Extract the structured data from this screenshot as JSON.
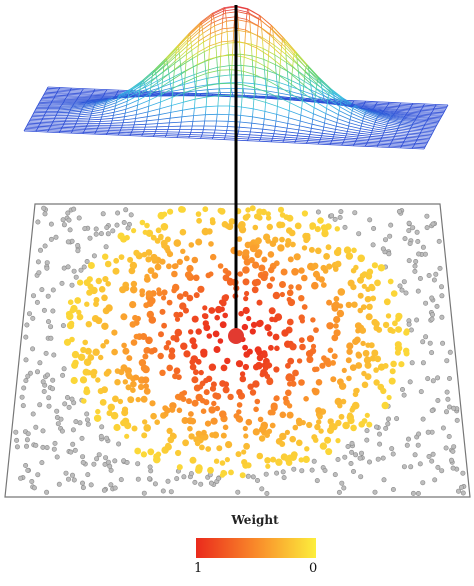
{
  "legend": {
    "title": "Weight",
    "min_label": "1",
    "max_label": "0",
    "gradient_start": "#ea2a1c",
    "gradient_mid": "#f98a2a",
    "gradient_end": "#fcee3c"
  },
  "colors": {
    "background_point": "#9a9a9a",
    "plane_border": "#777777",
    "surface_low": "#2c4bd6",
    "surface_high": "#e3313f",
    "vertical_line": "#000000"
  },
  "icons": {
    "surface": "gaussian-mesh-surface",
    "center": "center-point-icon"
  }
}
